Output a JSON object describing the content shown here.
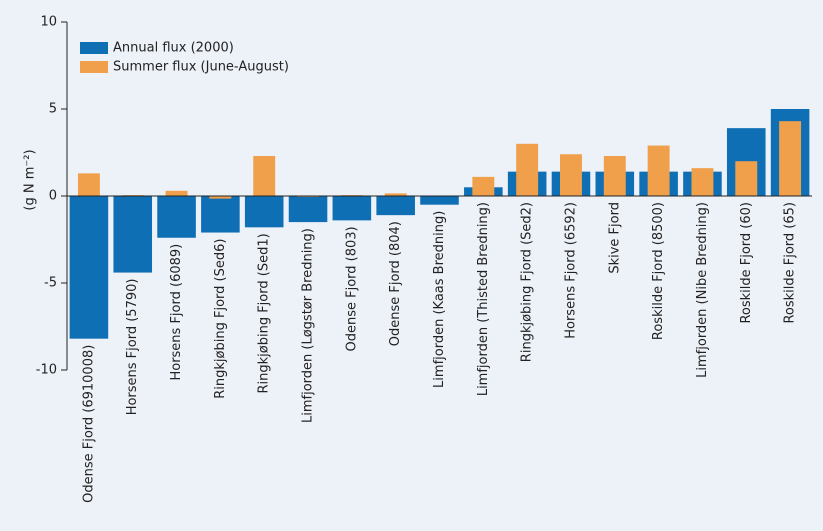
{
  "chart_data": {
    "type": "bar",
    "y_label": "(g N m⁻²)",
    "categories": [
      "Odense Fjord (6910008)",
      "Horsens Fjord (5790)",
      "Horsens Fjord (6089)",
      "Ringkjøbing Fjord (Sed6)",
      "Ringkjøbing Fjord (Sed1)",
      "Limfjorden (Løgstør Bredning)",
      "Odense Fjord (803)",
      "Odense Fjord (804)",
      "Limfjorden (Kaas Bredning)",
      "Limfjorden (Thisted Bredning)",
      "Ringkjøbing Fjord (Sed2)",
      "Horsens Fjord (6592)",
      "Skive Fjord",
      "Roskilde Fjord (8500)",
      "Limfjorden (Nibe Bredning)",
      "Roskilde Fjord (60)",
      "Roskilde Fjord (65)"
    ],
    "series": [
      {
        "name": "Annual flux (2000)",
        "color": "#0f6fb5",
        "values": [
          -8.2,
          -4.4,
          -2.4,
          -2.1,
          -1.8,
          -1.5,
          -1.4,
          -1.1,
          -0.5,
          0.5,
          1.4,
          1.4,
          1.4,
          1.4,
          1.4,
          3.9,
          5.0
        ]
      },
      {
        "name": "Summer flux (June-August)",
        "color": "#f0a04b",
        "values": [
          1.3,
          0.05,
          0.3,
          -0.15,
          2.3,
          -0.05,
          0.05,
          0.15,
          0,
          1.1,
          3.0,
          2.4,
          2.3,
          2.9,
          1.6,
          2.0,
          4.3
        ]
      }
    ],
    "ylim": [
      -10,
      10
    ],
    "yticks": [
      -10,
      -5,
      0,
      5,
      10
    ]
  }
}
